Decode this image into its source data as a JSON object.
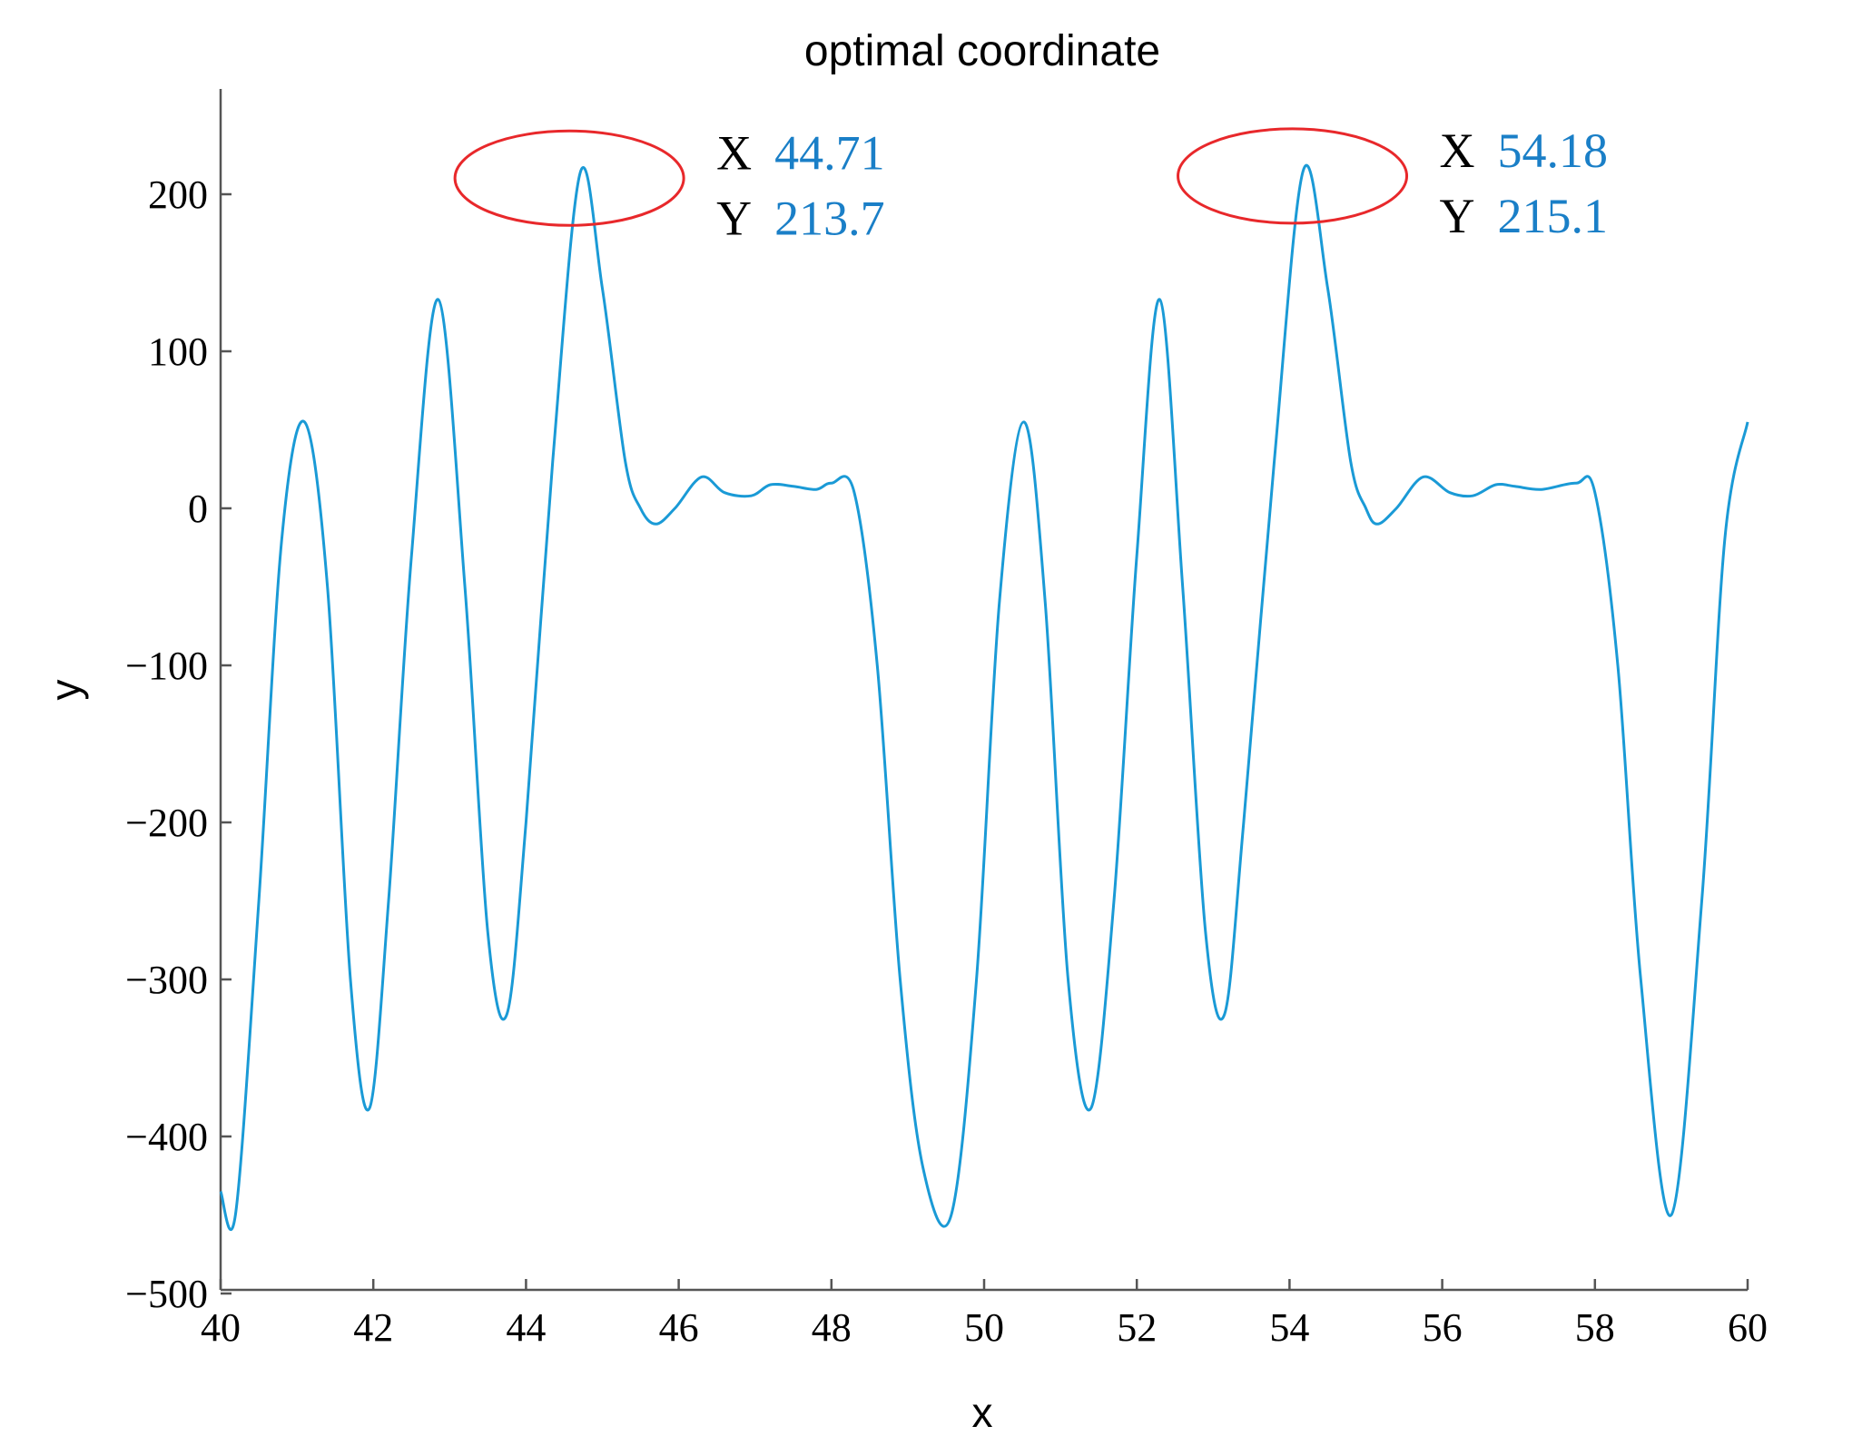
{
  "chart_data": {
    "type": "line",
    "title": "optimal coordinate",
    "xlabel": "x",
    "ylabel": "y",
    "xlim": [
      40,
      60
    ],
    "ylim": [
      -500,
      270
    ],
    "xticks": [
      40,
      42,
      44,
      46,
      48,
      50,
      52,
      54,
      56,
      58,
      60
    ],
    "yticks": [
      -500,
      -400,
      -300,
      -200,
      -100,
      0,
      100,
      200
    ],
    "grid": false,
    "series": [
      {
        "color": "#1a9ad6",
        "x": [
          40.0,
          40.2,
          40.5,
          40.8,
          41.1,
          41.4,
          41.7,
          41.95,
          42.2,
          42.5,
          42.85,
          43.2,
          43.5,
          43.75,
          44.0,
          44.35,
          44.71,
          45.0,
          45.3,
          45.5,
          45.7,
          45.95,
          46.3,
          46.6,
          46.95,
          47.2,
          47.5,
          47.8,
          48.0,
          48.3,
          48.6,
          48.9,
          49.2,
          49.57,
          49.9,
          50.2,
          50.52,
          50.8,
          51.1,
          51.4,
          51.7,
          52.0,
          52.3,
          52.6,
          52.9,
          53.15,
          53.4,
          53.8,
          54.18,
          54.5,
          54.8,
          55.0,
          55.15,
          55.4,
          55.75,
          56.1,
          56.4,
          56.7,
          56.95,
          57.3,
          57.75,
          58.0,
          58.3,
          58.6,
          59.0,
          59.4,
          59.7,
          60.0
        ],
        "y": [
          -435,
          -448,
          -250,
          -20,
          55,
          -50,
          -300,
          -382,
          -250,
          -30,
          133,
          -50,
          -270,
          -322,
          -200,
          30,
          213.7,
          140,
          30,
          0,
          -10,
          0,
          20,
          10,
          8,
          15,
          14,
          12,
          16,
          10,
          -100,
          -300,
          -420,
          -450,
          -300,
          -60,
          55,
          -60,
          -300,
          -382,
          -250,
          -30,
          133,
          -50,
          -270,
          -322,
          -200,
          30,
          215.1,
          140,
          30,
          0,
          -10,
          0,
          20,
          10,
          8,
          15,
          14,
          12,
          16,
          10,
          -100,
          -300,
          -450,
          -250,
          -20,
          55
        ]
      }
    ],
    "annotations": [
      {
        "x_key": "X",
        "y_key": "Y",
        "x_value": "44.71",
        "y_value": "213.7",
        "x": 44.71,
        "y": 213.7,
        "marker": "ellipse",
        "marker_color": "#e8282b",
        "value_color": "#1a7fc7"
      },
      {
        "x_key": "X",
        "y_key": "Y",
        "x_value": "54.18",
        "y_value": "215.1",
        "x": 54.18,
        "y": 215.1,
        "marker": "ellipse",
        "marker_color": "#e8282b",
        "value_color": "#1a7fc7"
      }
    ]
  }
}
